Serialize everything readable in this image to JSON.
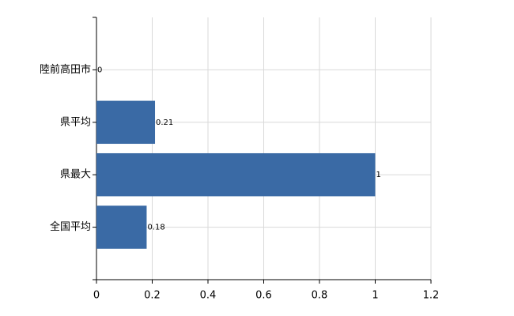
{
  "chart_data": {
    "type": "bar",
    "orientation": "horizontal",
    "categories": [
      "陸前高田市",
      "県平均",
      "県最大",
      "全国平均"
    ],
    "values": [
      0,
      0.21,
      1,
      0.18
    ],
    "color": "#3a6aa5",
    "xlim": [
      0,
      1.2
    ],
    "xticks": [
      0,
      0.2,
      0.4,
      0.6,
      0.8,
      1,
      1.2
    ],
    "grid": true
  }
}
